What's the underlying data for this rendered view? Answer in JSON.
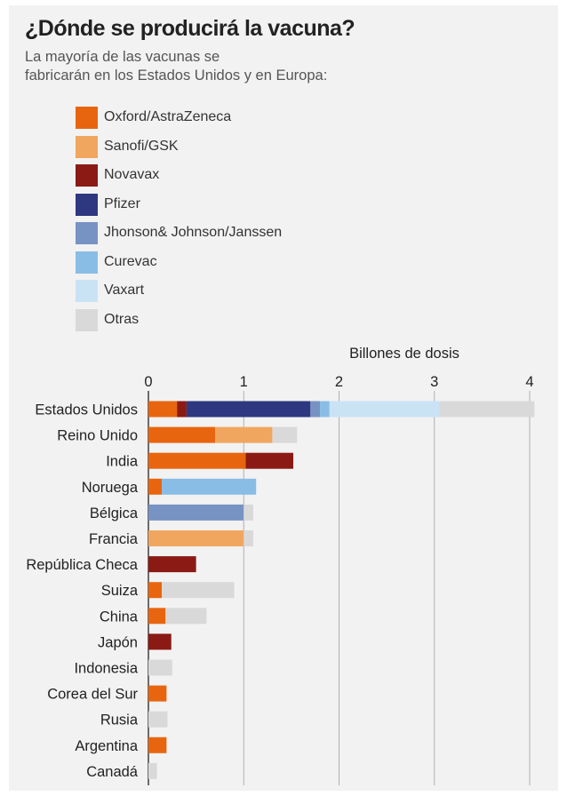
{
  "title": "¿Dónde se producirá la vacuna?",
  "subtitle_lines": [
    "La mayoría de las vacunas se",
    "fabricarán en los Estados Unidos y en Europa:"
  ],
  "colors": {
    "Oxford/AstraZeneca": "#e8650f",
    "Sanofi/GSK": "#f0a65f",
    "Novavax": "#8b1a14",
    "Pfizer": "#2e3880",
    "Jhonson& Johnson/Janssen": "#7793c4",
    "Curevac": "#8abde6",
    "Vaxart": "#c9e3f5",
    "Otras": "#d9d9d9"
  },
  "chart_data": {
    "type": "bar",
    "orientation": "horizontal",
    "stacked": true,
    "xlabel": "Billones de dosis",
    "xlim": [
      0,
      4
    ],
    "xticks": [
      "0",
      "1",
      "2",
      "3",
      "4"
    ],
    "grid": true,
    "legend_position": "top-left",
    "categories": [
      "Estados Unidos",
      "Reino Unido",
      "India",
      "Noruega",
      "Bélgica",
      "Francia",
      "República Checa",
      "Suiza",
      "China",
      "Japón",
      "Indonesia",
      "Corea del Sur",
      "Rusia",
      "Argentina",
      "Canadá"
    ],
    "series": [
      {
        "name": "Oxford/AstraZeneca",
        "values": [
          0.3,
          0.7,
          1.02,
          0.14,
          0,
          0,
          0,
          0.14,
          0.18,
          0,
          0,
          0.19,
          0,
          0.19,
          0
        ]
      },
      {
        "name": "Sanofi/GSK",
        "values": [
          0,
          0.6,
          0,
          0,
          0,
          1.0,
          0,
          0,
          0,
          0,
          0,
          0,
          0,
          0,
          0
        ]
      },
      {
        "name": "Novavax",
        "values": [
          0.1,
          0,
          0.5,
          0,
          0,
          0,
          0.5,
          0,
          0,
          0.24,
          0,
          0,
          0,
          0,
          0
        ]
      },
      {
        "name": "Pfizer",
        "values": [
          1.3,
          0,
          0,
          0,
          0,
          0,
          0,
          0,
          0,
          0,
          0,
          0,
          0,
          0,
          0
        ]
      },
      {
        "name": "Jhonson& Johnson/Janssen",
        "values": [
          0.1,
          0,
          0,
          0,
          1.0,
          0,
          0,
          0,
          0,
          0,
          0,
          0,
          0,
          0,
          0
        ]
      },
      {
        "name": "Curevac",
        "values": [
          0.1,
          0,
          0,
          0.99,
          0,
          0,
          0,
          0,
          0,
          0,
          0,
          0,
          0,
          0,
          0
        ]
      },
      {
        "name": "Vaxart",
        "values": [
          1.15,
          0,
          0,
          0,
          0,
          0,
          0,
          0,
          0,
          0,
          0,
          0,
          0,
          0,
          0
        ]
      },
      {
        "name": "Otras",
        "values": [
          1.0,
          0.26,
          0,
          0,
          0.1,
          0.1,
          0,
          0.76,
          0.43,
          0,
          0.25,
          0,
          0.2,
          0,
          0.09
        ]
      }
    ]
  }
}
